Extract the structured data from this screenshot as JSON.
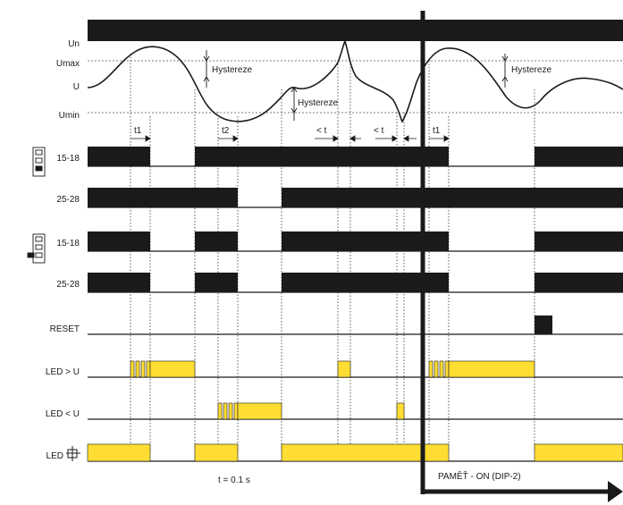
{
  "signal_levels": {
    "un": "Un",
    "umax": "Umax",
    "u": "U",
    "umin": "Umin"
  },
  "hysteresis_label": "Hystereze",
  "time_labels": {
    "t1": "t1",
    "t2": "t2",
    "less_t": "< t"
  },
  "relay_rows": {
    "a1": "15-18",
    "a2": "25-28",
    "b1": "15-18",
    "b2": "25-28"
  },
  "reset_label": "RESET",
  "led_labels": {
    "over": "LED > U",
    "under": "LED < U",
    "power": "LED"
  },
  "footer": {
    "time_note": "t = 0.1 s",
    "memory_note": "PAMĚŤ - ON (DIP-2)"
  },
  "colors": {
    "ink": "#1a1a1a",
    "led": "#ffdd33"
  },
  "icons": [
    "dip-switch-icon-a",
    "dip-switch-icon-b",
    "power-led-icon"
  ]
}
